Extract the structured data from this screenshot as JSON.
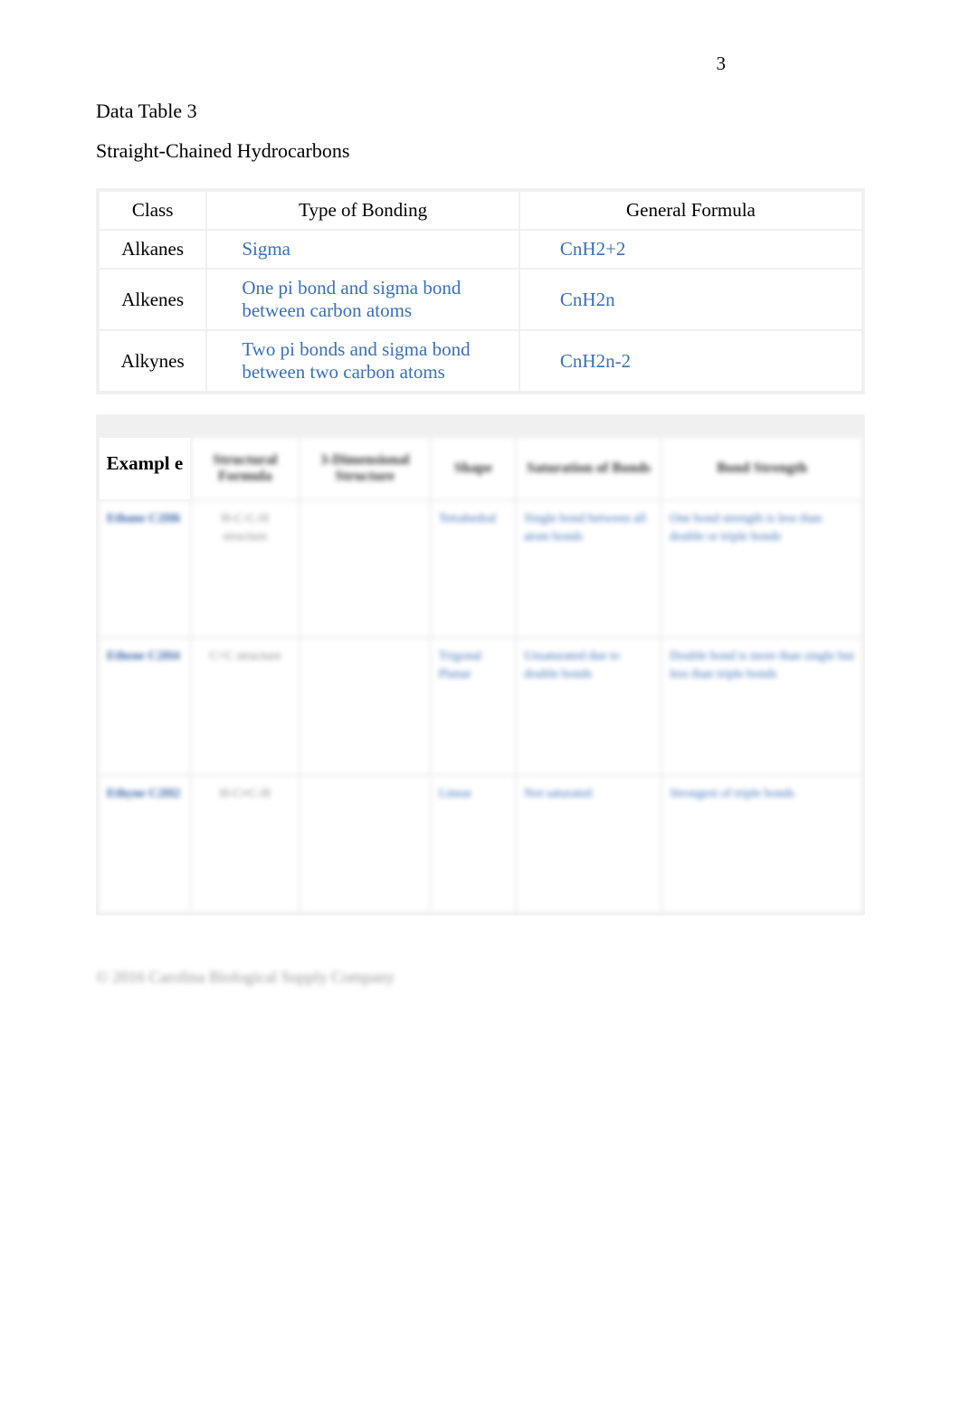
{
  "page_number": "3",
  "heading": "Data Table 3",
  "subtitle": "Straight-Chained Hydrocarbons",
  "table1": {
    "headers": [
      "Class",
      "Type of Bonding",
      "General Formula"
    ],
    "rows": [
      {
        "class": "Alkanes",
        "bonding": "Sigma",
        "formula": "CnH2+2"
      },
      {
        "class": "Alkenes",
        "bonding": "One pi bond and sigma bond between carbon atoms",
        "formula": "CnH2n"
      },
      {
        "class": "Alkynes",
        "bonding": "Two pi bonds and sigma bond between two carbon atoms",
        "formula": "CnH2n-2"
      }
    ]
  },
  "table2": {
    "headers": [
      "Exampl e",
      "Structural Formula",
      "3-Dimensional Structure",
      "Shape",
      "Saturation of Bonds",
      "Bond Strength"
    ],
    "rows": [
      {
        "example": "Ethane C2H6",
        "structural": "H-C-C-H structure",
        "threed": "",
        "shape": "Tetrahedral",
        "saturation": "Single bond between all atom bonds",
        "strength": "One bond strength is less than double or triple bonds"
      },
      {
        "example": "Ethene C2H4",
        "structural": "C=C structure",
        "threed": "",
        "shape": "Trigonal Planar",
        "saturation": "Unsaturated due to double bonds",
        "strength": "Double bond is more than single but less than triple bonds"
      },
      {
        "example": "Ethyne C2H2",
        "structural": "H-C≡C-H",
        "threed": "",
        "shape": "Linear",
        "saturation": "Not saturated",
        "strength": "Strongest of triple bonds"
      }
    ]
  },
  "footer": "© 2016 Carolina Biological Supply Company",
  "colors": {
    "text": "#000000",
    "link": "#3b6fb6",
    "table_bg": "#f0f0f0",
    "cell_bg": "#ffffff"
  }
}
